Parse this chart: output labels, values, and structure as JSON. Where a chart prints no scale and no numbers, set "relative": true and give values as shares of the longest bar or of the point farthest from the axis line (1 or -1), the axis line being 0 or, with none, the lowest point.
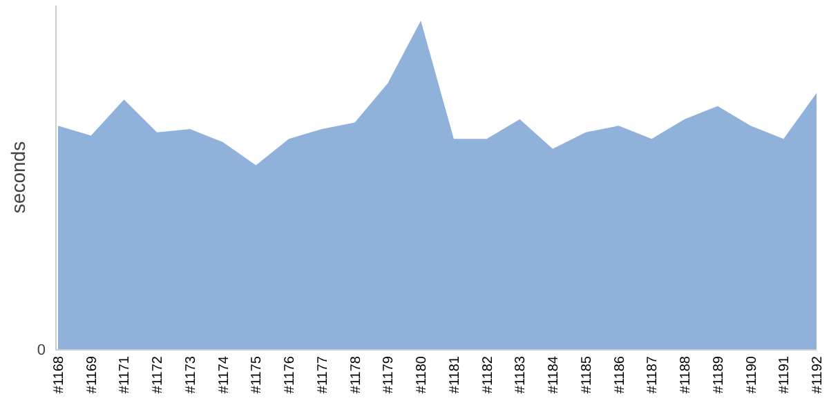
{
  "chart_data": {
    "type": "area",
    "ylabel": "seconds",
    "relative": true,
    "categories": [
      "#1168",
      "#1169",
      "#1171",
      "#1172",
      "#1173",
      "#1174",
      "#1175",
      "#1176",
      "#1177",
      "#1178",
      "#1179",
      "#1180",
      "#1181",
      "#1182",
      "#1183",
      "#1184",
      "#1185",
      "#1186",
      "#1187",
      "#1188",
      "#1189",
      "#1190",
      "#1191",
      "#1192"
    ],
    "series": [
      {
        "color": "#8fb1da",
        "values": [
          0.68,
          0.65,
          0.76,
          0.66,
          0.67,
          0.63,
          0.56,
          0.64,
          0.67,
          0.69,
          0.81,
          1,
          0.64,
          0.64,
          0.7,
          0.61,
          0.66,
          0.68,
          0.64,
          0.7,
          0.74,
          0.68,
          0.64,
          0.78
        ]
      }
    ],
    "annotations": [
      "0"
    ]
  }
}
